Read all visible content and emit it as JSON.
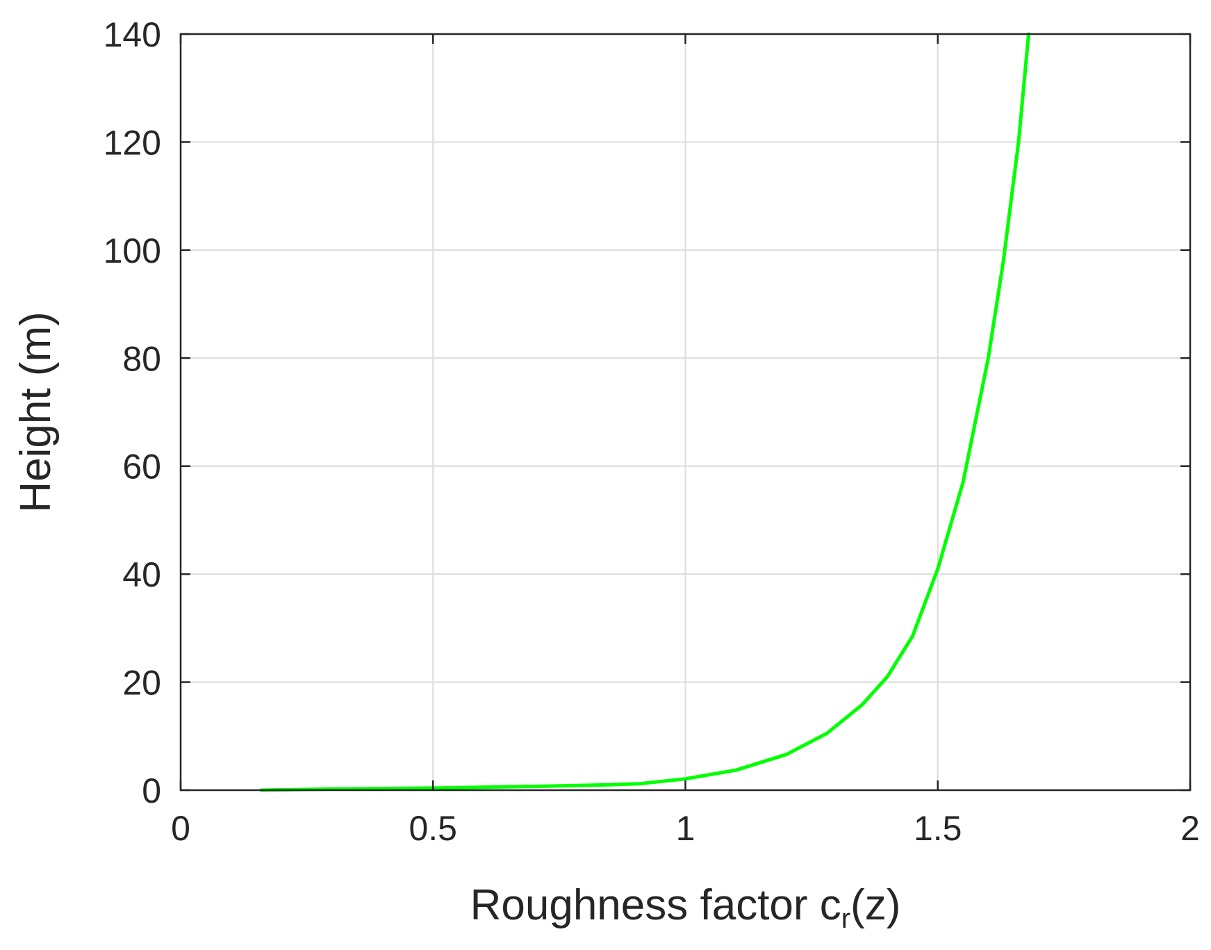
{
  "colors": {
    "line": "#00ff00",
    "axis": "#262626",
    "grid": "#dcdcdc",
    "background": "#ffffff"
  },
  "chart_data": {
    "type": "line",
    "title": "",
    "xlabel": {
      "prefix": "Roughness factor c",
      "subscript": "r",
      "suffix": "(z)"
    },
    "ylabel": "Height (m)",
    "xlim": [
      0,
      2
    ],
    "ylim": [
      0,
      140
    ],
    "x_ticks": [
      0,
      0.5,
      1,
      1.5,
      2
    ],
    "x_tick_labels": [
      "0",
      "0.5",
      "1",
      "1.5",
      "2"
    ],
    "y_ticks": [
      0,
      20,
      40,
      60,
      80,
      100,
      120,
      140
    ],
    "y_tick_labels": [
      "0",
      "20",
      "40",
      "60",
      "80",
      "100",
      "120",
      "140"
    ],
    "grid": true,
    "legend": "none",
    "series": [
      {
        "color": "#00ff00",
        "x": [
          0.16,
          0.3,
          0.5,
          0.7,
          0.85,
          0.91,
          1.0,
          1.1,
          1.2,
          1.28,
          1.35,
          1.4,
          1.45,
          1.5,
          1.55,
          1.6,
          1.63,
          1.66,
          1.68
        ],
        "y": [
          0,
          0.2,
          0.4,
          0.7,
          1.0,
          1.2,
          2.1,
          3.7,
          6.6,
          10.5,
          15.8,
          21.0,
          28.5,
          41.0,
          57.0,
          80.0,
          98.0,
          120.0,
          140.0
        ]
      }
    ]
  }
}
